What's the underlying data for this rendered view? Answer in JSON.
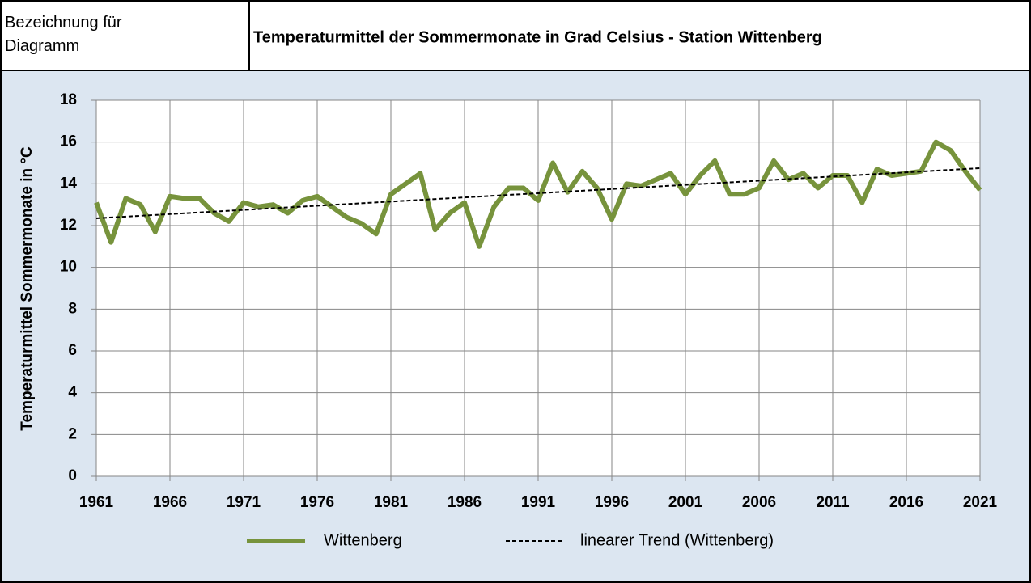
{
  "header": {
    "label": "Bezeichnung für Diagramm"
  },
  "chart_data": {
    "type": "line",
    "title": "Temperaturmittel der Sommermonate in Grad Celsius - Station Wittenberg",
    "y_label": "Temperaturmittel Sommermonate in °C",
    "xlim": [
      1961,
      2021
    ],
    "xticks": [
      1961,
      1966,
      1971,
      1976,
      1981,
      1986,
      1991,
      1996,
      2001,
      2006,
      2011,
      2016,
      2021
    ],
    "ylim": [
      0,
      18
    ],
    "yticks": [
      0,
      2,
      4,
      6,
      8,
      10,
      12,
      14,
      16,
      18
    ],
    "grid": true,
    "legend": "bottom",
    "series": [
      {
        "name": "Wittenberg",
        "color": "#77933c",
        "style": "solid",
        "x": [
          1961,
          1962,
          1963,
          1964,
          1965,
          1966,
          1967,
          1968,
          1969,
          1970,
          1971,
          1972,
          1973,
          1974,
          1975,
          1976,
          1977,
          1978,
          1979,
          1980,
          1981,
          1982,
          1983,
          1984,
          1985,
          1986,
          1987,
          1988,
          1989,
          1990,
          1991,
          1992,
          1993,
          1994,
          1995,
          1996,
          1997,
          1998,
          1999,
          2000,
          2001,
          2002,
          2003,
          2004,
          2005,
          2006,
          2007,
          2008,
          2009,
          2010,
          2011,
          2012,
          2013,
          2014,
          2015,
          2016,
          2017,
          2018,
          2019,
          2020,
          2021
        ],
        "values": [
          13.1,
          11.2,
          13.3,
          13.0,
          11.7,
          13.4,
          13.3,
          13.3,
          12.6,
          12.2,
          13.1,
          12.9,
          13.0,
          12.6,
          13.2,
          13.4,
          12.9,
          12.4,
          12.1,
          11.6,
          13.5,
          14.0,
          14.5,
          11.8,
          12.6,
          13.1,
          11.0,
          12.9,
          13.8,
          13.8,
          13.2,
          15.0,
          13.6,
          14.6,
          13.8,
          12.3,
          14.0,
          13.9,
          14.2,
          14.5,
          13.5,
          14.4,
          15.1,
          13.5,
          13.5,
          13.8,
          15.1,
          14.2,
          14.5,
          13.8,
          14.4,
          14.4,
          13.1,
          14.7,
          14.4,
          14.5,
          14.6,
          16.0,
          15.6,
          14.6,
          13.7
        ]
      },
      {
        "name": "linearer Trend (Wittenberg)",
        "color": "#000000",
        "style": "dashed",
        "x": [
          1961,
          2021
        ],
        "values": [
          12.35,
          14.75
        ]
      }
    ]
  }
}
